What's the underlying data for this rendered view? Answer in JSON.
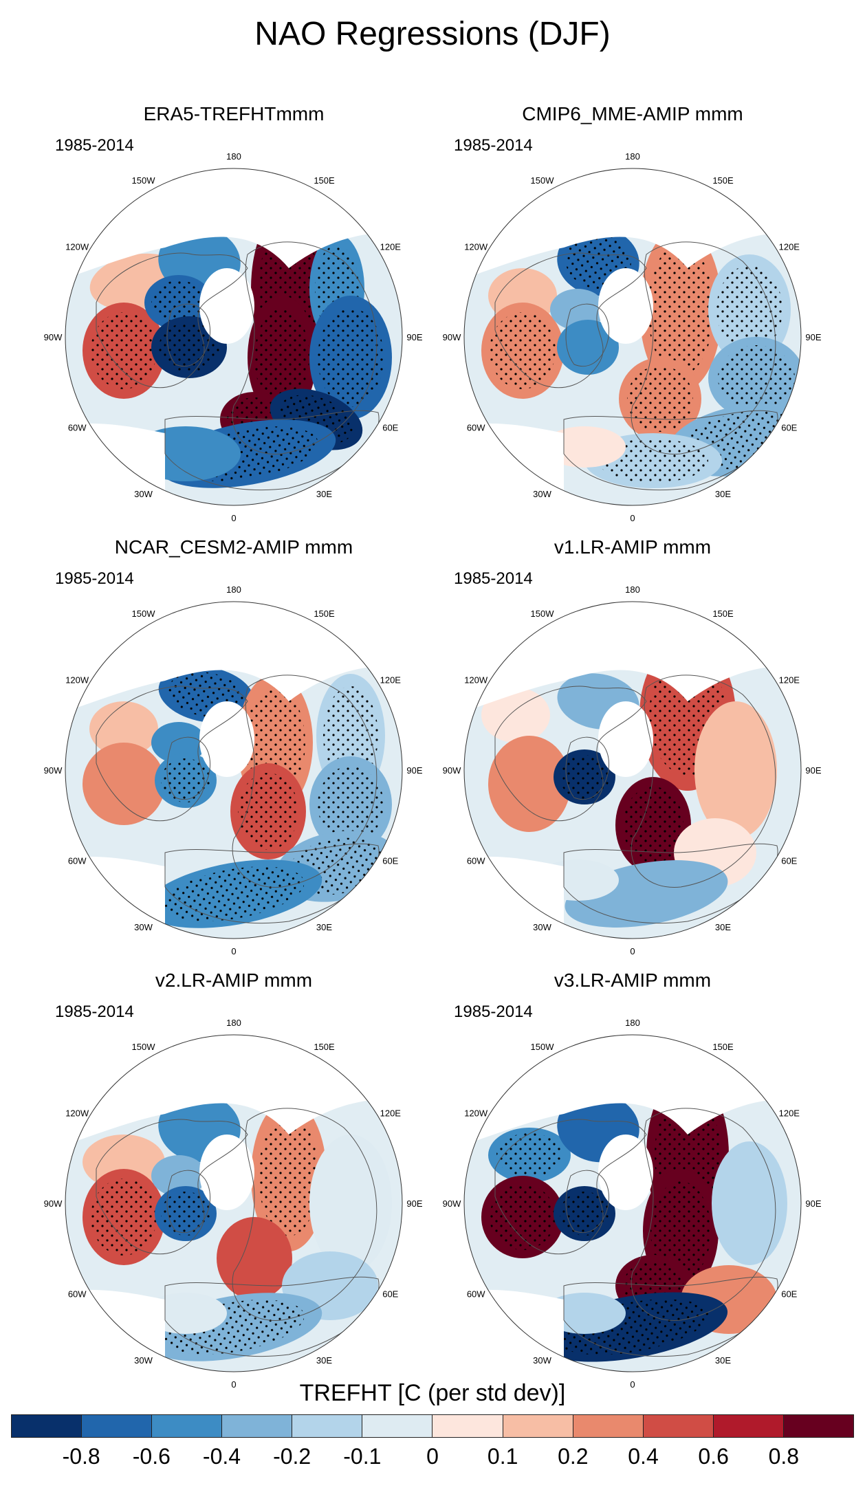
{
  "title": "NAO Regressions (DJF)",
  "colors": {
    "boxes": [
      "#08306b",
      "#2166ac",
      "#3d8cc4",
      "#7fb3d8",
      "#b3d4ea",
      "#deebf2",
      "#fde6dd",
      "#f7bea5",
      "#e9896d",
      "#d04d45",
      "#b01a2b",
      "#67001f"
    ],
    "land_outline": "#555555",
    "stipple": "#000000"
  },
  "panels": [
    {
      "title": "ERA5-TREFHTmmm",
      "period": "1985-2014",
      "style": "strong_a"
    },
    {
      "title": "CMIP6_MME-AMIP  mmm",
      "period": "1985-2014",
      "style": "moderate"
    },
    {
      "title": "NCAR_CESM2-AMIP  mmm",
      "period": "1985-2014",
      "style": "moderate_b"
    },
    {
      "title": "v1.LR-AMIP  mmm",
      "period": "1985-2014",
      "style": "europe_warm"
    },
    {
      "title": "v2.LR-AMIP  mmm",
      "period": "1985-2014",
      "style": "moderate_c"
    },
    {
      "title": "v3.LR-AMIP  mmm",
      "period": "1985-2014",
      "style": "strong_b"
    }
  ],
  "longitude_labels": [
    "180",
    "150E",
    "120E",
    "90E",
    "60E",
    "30E",
    "0",
    "30W",
    "60W",
    "90W",
    "120W",
    "150W"
  ],
  "colorbar": {
    "title": "TREFHT [C (per std dev)]",
    "labels": [
      "-0.8",
      "-0.6",
      "-0.4",
      "-0.2",
      "-0.1",
      "0",
      "0.1",
      "0.2",
      "0.4",
      "0.6",
      "0.8"
    ]
  }
}
